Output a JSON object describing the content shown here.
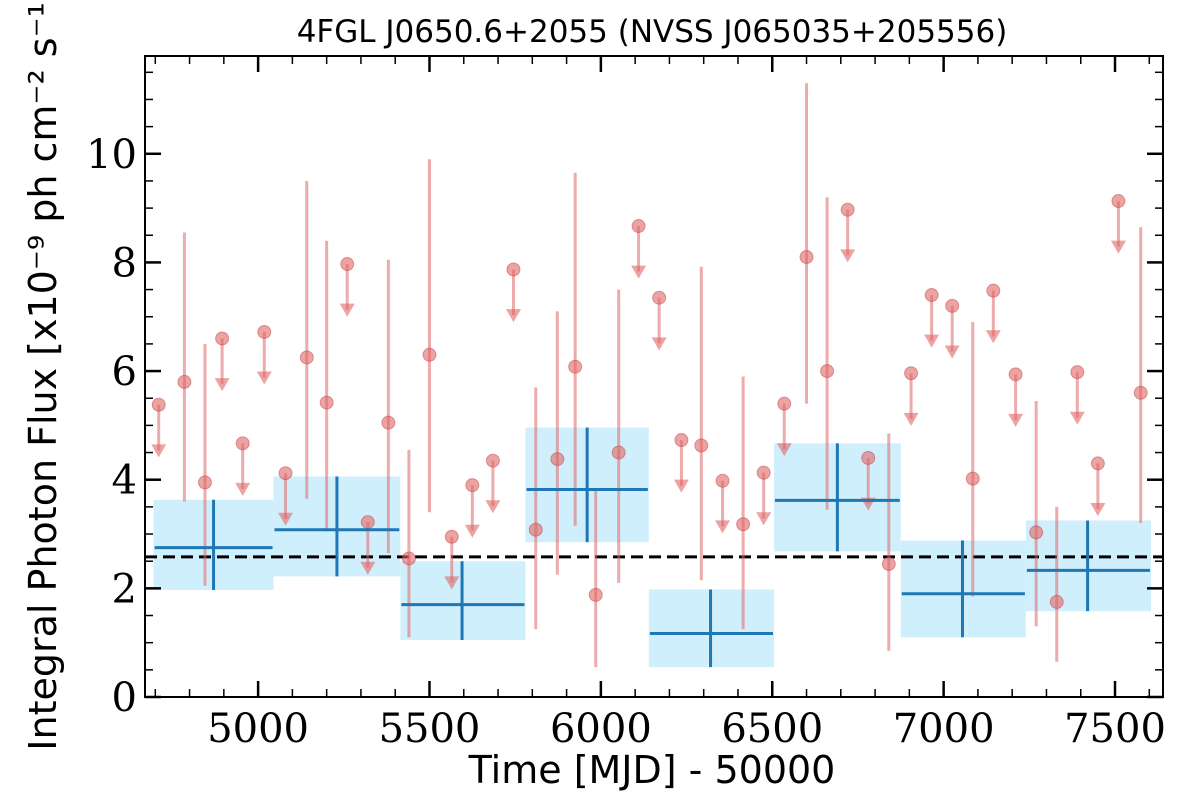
{
  "chart_data": {
    "type": "scatter",
    "title": "4FGL J0650.6+2055 (NVSS J065035+205556)",
    "xlabel": "Time [MJD] - 50000",
    "ylabel": "Integral Photon Flux [x10⁻⁹ ph cm⁻² s⁻¹]",
    "xlim": [
      4670,
      7640
    ],
    "ylim": [
      0,
      11.8
    ],
    "x_ticks": [
      5000,
      5500,
      6000,
      6500,
      7000,
      7500
    ],
    "x_tick_labels": [
      "5000",
      "5500",
      "6000",
      "6500",
      "7000",
      "7500"
    ],
    "y_ticks": [
      0,
      2,
      4,
      6,
      8,
      10
    ],
    "y_tick_labels": [
      "0",
      "2",
      "4",
      "6",
      "8",
      "10"
    ],
    "grid": false,
    "reference_line": {
      "y": 2.58,
      "style": "dashed",
      "color": "#000000"
    },
    "colors": {
      "short_bins": "#e06666",
      "long_bins": "#1f77b4",
      "long_bin_box": "#cdeefc"
    },
    "series": [
      {
        "marker": "circle-with-error",
        "points": [
          {
            "x": 4785,
            "y": 5.8,
            "lo": 3.6,
            "hi": 8.55
          },
          {
            "x": 4845,
            "y": 3.95,
            "lo": 2.05,
            "hi": 6.5
          },
          {
            "x": 5142,
            "y": 6.25,
            "lo": 3.65,
            "hi": 9.5
          },
          {
            "x": 5200,
            "y": 5.42,
            "lo": 3.05,
            "hi": 8.4
          },
          {
            "x": 5380,
            "y": 5.05,
            "lo": 2.65,
            "hi": 8.05
          },
          {
            "x": 5440,
            "y": 2.55,
            "lo": 1.1,
            "hi": 4.55
          },
          {
            "x": 5500,
            "y": 6.3,
            "lo": 3.4,
            "hi": 9.9
          },
          {
            "x": 5810,
            "y": 3.08,
            "lo": 1.25,
            "hi": 5.7
          },
          {
            "x": 5873,
            "y": 4.38,
            "lo": 2.25,
            "hi": 7.1
          },
          {
            "x": 5925,
            "y": 6.08,
            "lo": 3.15,
            "hi": 9.65
          },
          {
            "x": 5985,
            "y": 1.88,
            "lo": 0.55,
            "hi": 3.85
          },
          {
            "x": 6052,
            "y": 4.5,
            "lo": 2.1,
            "hi": 7.5
          },
          {
            "x": 6293,
            "y": 4.63,
            "lo": 2.15,
            "hi": 7.92
          },
          {
            "x": 6415,
            "y": 3.18,
            "lo": 1.25,
            "hi": 5.9
          },
          {
            "x": 6600,
            "y": 8.1,
            "lo": 5.4,
            "hi": 11.3
          },
          {
            "x": 6660,
            "y": 6.0,
            "lo": 3.45,
            "hi": 9.2
          },
          {
            "x": 6840,
            "y": 2.45,
            "lo": 0.85,
            "hi": 4.85
          },
          {
            "x": 7085,
            "y": 4.02,
            "lo": 1.85,
            "hi": 6.9
          },
          {
            "x": 7270,
            "y": 3.03,
            "lo": 1.3,
            "hi": 5.45
          },
          {
            "x": 7330,
            "y": 1.75,
            "lo": 0.65,
            "hi": 3.5
          },
          {
            "x": 7575,
            "y": 5.6,
            "lo": 3.2,
            "hi": 8.65
          }
        ]
      },
      {
        "marker": "upper-limit",
        "points": [
          {
            "x": 4710,
            "y": 5.38
          },
          {
            "x": 4895,
            "y": 6.6
          },
          {
            "x": 4955,
            "y": 4.67
          },
          {
            "x": 5018,
            "y": 6.72
          },
          {
            "x": 5080,
            "y": 4.12
          },
          {
            "x": 5260,
            "y": 7.97
          },
          {
            "x": 5320,
            "y": 3.22
          },
          {
            "x": 5565,
            "y": 2.95
          },
          {
            "x": 5625,
            "y": 3.9
          },
          {
            "x": 5685,
            "y": 4.35
          },
          {
            "x": 5745,
            "y": 7.87
          },
          {
            "x": 6110,
            "y": 8.67
          },
          {
            "x": 6170,
            "y": 7.35
          },
          {
            "x": 6235,
            "y": 4.73
          },
          {
            "x": 6355,
            "y": 3.98
          },
          {
            "x": 6475,
            "y": 4.13
          },
          {
            "x": 6535,
            "y": 5.4
          },
          {
            "x": 6720,
            "y": 8.97
          },
          {
            "x": 6780,
            "y": 4.4
          },
          {
            "x": 6905,
            "y": 5.96
          },
          {
            "x": 6965,
            "y": 7.4
          },
          {
            "x": 7025,
            "y": 7.2
          },
          {
            "x": 7145,
            "y": 7.48
          },
          {
            "x": 7210,
            "y": 5.94
          },
          {
            "x": 7390,
            "y": 5.98
          },
          {
            "x": 7450,
            "y": 4.3
          },
          {
            "x": 7510,
            "y": 9.13
          }
        ]
      },
      {
        "marker": "crosshair-with-box",
        "points": [
          {
            "x": 4870,
            "y": 2.75,
            "xlo": 4695,
            "xhi": 5045,
            "lo": 1.97,
            "hi": 3.63
          },
          {
            "x": 5230,
            "y": 3.08,
            "xlo": 5045,
            "xhi": 5415,
            "lo": 2.22,
            "hi": 4.06
          },
          {
            "x": 5595,
            "y": 1.7,
            "xlo": 5415,
            "xhi": 5780,
            "lo": 1.05,
            "hi": 2.5
          },
          {
            "x": 5960,
            "y": 3.82,
            "xlo": 5780,
            "xhi": 6140,
            "lo": 2.85,
            "hi": 4.96
          },
          {
            "x": 6320,
            "y": 1.17,
            "xlo": 6140,
            "xhi": 6505,
            "lo": 0.55,
            "hi": 1.98
          },
          {
            "x": 6690,
            "y": 3.62,
            "xlo": 6505,
            "xhi": 6875,
            "lo": 2.68,
            "hi": 4.67
          },
          {
            "x": 7055,
            "y": 1.9,
            "xlo": 6875,
            "xhi": 7240,
            "lo": 1.1,
            "hi": 2.88
          },
          {
            "x": 7420,
            "y": 2.33,
            "xlo": 7240,
            "xhi": 7605,
            "lo": 1.58,
            "hi": 3.25
          }
        ]
      }
    ]
  }
}
